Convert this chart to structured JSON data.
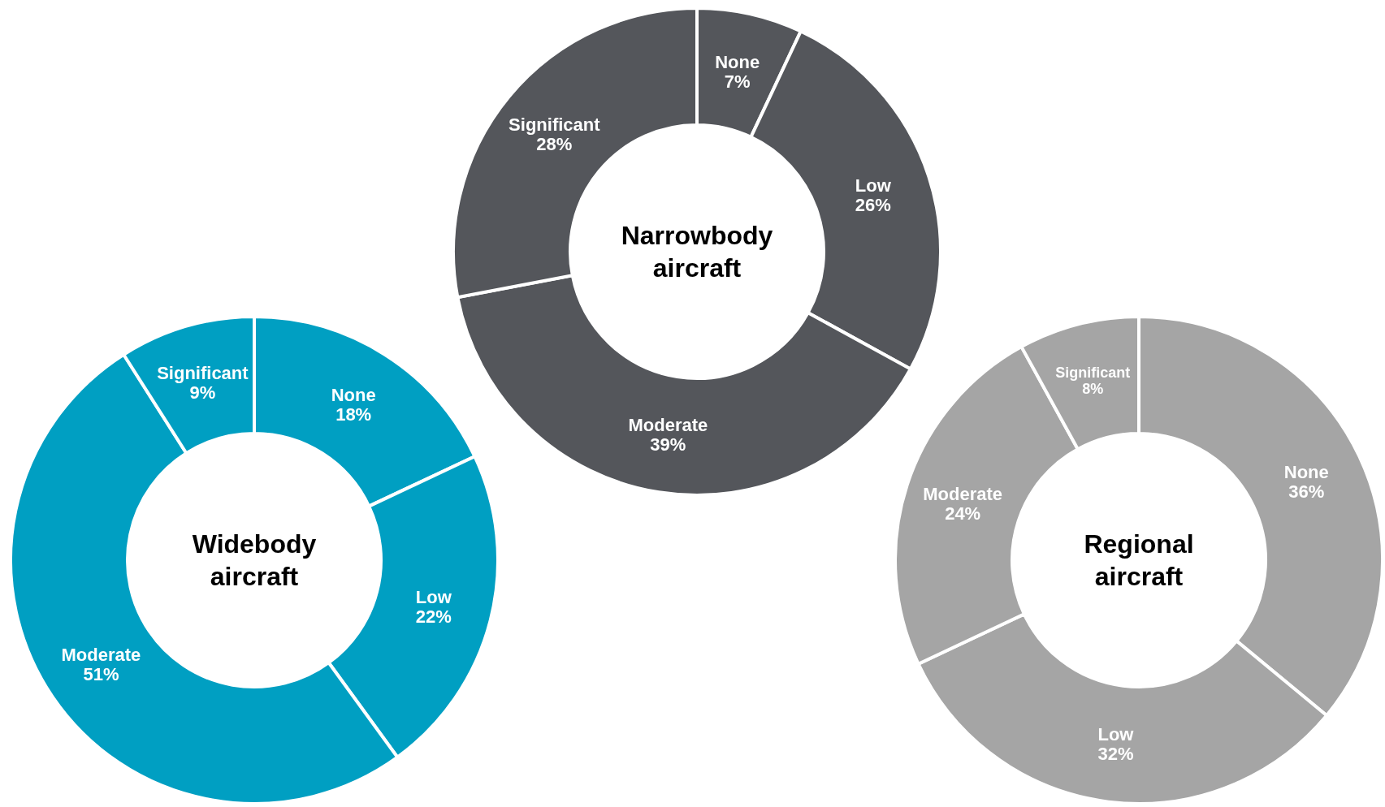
{
  "chart_data": [
    {
      "type": "donut",
      "title": "Widebody aircraft",
      "categories": [
        "None",
        "Low",
        "Moderate",
        "Significant"
      ],
      "values": [
        18,
        22,
        51,
        9
      ],
      "value_labels": [
        "18%",
        "22%",
        "51%",
        "9%"
      ],
      "colors": [
        "#009fc2",
        "#009fc2",
        "#009fc2",
        "#009fc2"
      ]
    },
    {
      "type": "donut",
      "title": "Narrowbody aircraft",
      "categories": [
        "None",
        "Low",
        "Moderate",
        "Significant"
      ],
      "values": [
        7,
        26,
        39,
        28
      ],
      "value_labels": [
        "7%",
        "26%",
        "39%",
        "28%"
      ],
      "colors": [
        "#54565b",
        "#54565b",
        "#54565b",
        "#54565b"
      ]
    },
    {
      "type": "donut",
      "title": "Regional aircraft",
      "categories": [
        "None",
        "Low",
        "Moderate",
        "Significant"
      ],
      "values": [
        36,
        32,
        24,
        8
      ],
      "value_labels": [
        "36%",
        "32%",
        "24%",
        "8%"
      ],
      "colors": [
        "#a5a5a5",
        "#a5a5a5",
        "#a5a5a5",
        "#a5a5a5"
      ]
    }
  ]
}
